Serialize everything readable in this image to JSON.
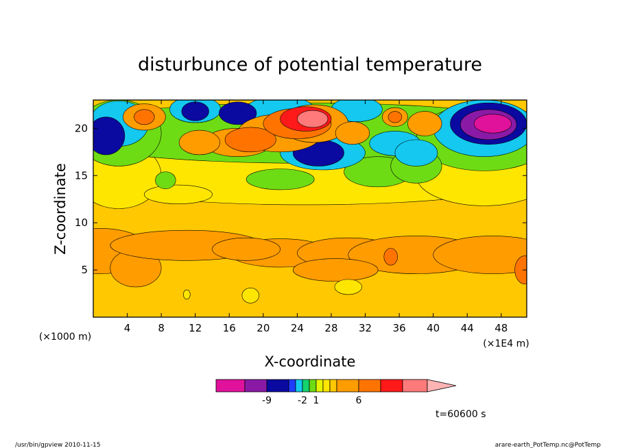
{
  "chart_data": {
    "type": "heatmap",
    "title": "disturbunce of potential temperature",
    "xlabel": "X-coordinate",
    "ylabel": "Z-coordinate",
    "x_unit_left": "(×1000 m)",
    "x_unit_right": "(×1E4 m)",
    "xlim": [
      0,
      51
    ],
    "ylim": [
      0,
      23
    ],
    "x_ticks": [
      {
        "value": 4,
        "label": "4"
      },
      {
        "value": 8,
        "label": "8"
      },
      {
        "value": 12,
        "label": "12"
      },
      {
        "value": 16,
        "label": "16"
      },
      {
        "value": 20,
        "label": "20"
      },
      {
        "value": 24,
        "label": "24"
      },
      {
        "value": 28,
        "label": "28"
      },
      {
        "value": 32,
        "label": "32"
      },
      {
        "value": 36,
        "label": "36"
      },
      {
        "value": 40,
        "label": "40"
      },
      {
        "value": 44,
        "label": "44"
      },
      {
        "value": 48,
        "label": "48"
      }
    ],
    "y_ticks": [
      {
        "value": 5,
        "label": "5"
      },
      {
        "value": 10,
        "label": "10"
      },
      {
        "value": 15,
        "label": "15"
      },
      {
        "value": 20,
        "label": "20"
      }
    ],
    "colorbar": {
      "colors": [
        "#e0129b",
        "#8a1aa6",
        "#0a0aa0",
        "#1e3cff",
        "#14c8f0",
        "#14d46e",
        "#6edc14",
        "#e6f500",
        "#ffe600",
        "#ffc800",
        "#ff9c00",
        "#ff7400",
        "#ff1a1a",
        "#ff7a7a",
        "#ffb4b4"
      ],
      "tick_labels": [
        {
          "after_box": 2,
          "label": "-9"
        },
        {
          "after_box": 5,
          "label": "-2"
        },
        {
          "after_box": 7,
          "label": "1"
        },
        {
          "after_box": 11,
          "label": "6"
        }
      ]
    },
    "fields": [
      {
        "bg": 9
      },
      {
        "level": 10,
        "blobs": [
          [
            0.8,
            7.0,
            6,
            2.4
          ],
          [
            5,
            5.2,
            3,
            2.0
          ],
          [
            11,
            7.6,
            9,
            1.6
          ],
          [
            22,
            6.8,
            6,
            1.5
          ],
          [
            30,
            6.8,
            6,
            1.6
          ],
          [
            38,
            6.6,
            8,
            2.0
          ],
          [
            47,
            6.6,
            7,
            2.0
          ],
          [
            28.5,
            5.0,
            5,
            1.2
          ],
          [
            18,
            7.2,
            4,
            1.2
          ]
        ]
      },
      {
        "level": 11,
        "blobs": [
          [
            35,
            6.4,
            0.8,
            0.9
          ],
          [
            50.8,
            5.0,
            1.2,
            1.5
          ]
        ]
      },
      {
        "level": 8,
        "blobs": [
          [
            25,
            15.5,
            30,
            3.6
          ],
          [
            3,
            15.0,
            5,
            3.5
          ],
          [
            46,
            15.0,
            8,
            3.2
          ],
          [
            10,
            13.0,
            4,
            1.0
          ],
          [
            30,
            3.2,
            1.6,
            0.8
          ],
          [
            18.5,
            2.3,
            1.0,
            0.8
          ],
          [
            11,
            2.4,
            0.4,
            0.5
          ]
        ]
      },
      {
        "level": 6,
        "blobs": [
          [
            25,
            19.5,
            30,
            3.2
          ],
          [
            46,
            19.0,
            8,
            3.5
          ],
          [
            3,
            19.5,
            5,
            3.5
          ],
          [
            8.5,
            14.5,
            1.2,
            0.9
          ],
          [
            22,
            14.6,
            4,
            1.1
          ],
          [
            33.5,
            15.4,
            4,
            1.6
          ],
          [
            38,
            16.0,
            3,
            1.8
          ]
        ]
      },
      {
        "level": 4,
        "blobs": [
          [
            3,
            20.5,
            3.5,
            2.4
          ],
          [
            12,
            22.0,
            3,
            1.4
          ],
          [
            22,
            22.0,
            4,
            1.4
          ],
          [
            31,
            22.0,
            3,
            1.3
          ],
          [
            27,
            17.4,
            5,
            1.8
          ],
          [
            35.5,
            18.4,
            3,
            1.3
          ],
          [
            38,
            17.4,
            2.5,
            1.4
          ],
          [
            46,
            20.0,
            6,
            3.0
          ]
        ]
      },
      {
        "level": 2,
        "blobs": [
          [
            1.5,
            19.2,
            2.2,
            2.0
          ],
          [
            12,
            21.8,
            1.6,
            1.0
          ],
          [
            17,
            21.6,
            2.2,
            1.2
          ],
          [
            26.5,
            17.4,
            3,
            1.4
          ],
          [
            46.5,
            20.5,
            4.5,
            2.2
          ]
        ]
      },
      {
        "level": 1,
        "blobs": [
          [
            46.5,
            20.4,
            3.3,
            1.6
          ]
        ]
      },
      {
        "level": 0,
        "blobs": [
          [
            47,
            20.5,
            2.2,
            1.0
          ]
        ]
      },
      {
        "level": 10,
        "blobs": [
          [
            17,
            18.5,
            4,
            1.5
          ],
          [
            22,
            19.5,
            5,
            2.0
          ],
          [
            26,
            20.5,
            4,
            2.0
          ],
          [
            6,
            21.2,
            2.5,
            1.4
          ],
          [
            35.5,
            21.2,
            1.5,
            1.0
          ],
          [
            39,
            20.5,
            2,
            1.3
          ],
          [
            12.5,
            18.5,
            2.4,
            1.3
          ],
          [
            30.5,
            19.5,
            2,
            1.2
          ]
        ]
      },
      {
        "level": 11,
        "blobs": [
          [
            18.5,
            18.8,
            3,
            1.3
          ],
          [
            24,
            20.5,
            4,
            1.6
          ],
          [
            6,
            21.2,
            1.2,
            0.8
          ],
          [
            35.5,
            21.2,
            0.8,
            0.6
          ]
        ]
      },
      {
        "level": 12,
        "blobs": [
          [
            25,
            21.0,
            3,
            1.3
          ]
        ]
      },
      {
        "level": 13,
        "blobs": [
          [
            25.8,
            21.0,
            1.8,
            0.9
          ]
        ]
      }
    ],
    "timestamp": "t=60600 s"
  },
  "footer": {
    "left": "/usr/bin/gpview   2010-11-15",
    "right": "arare-earth_PotTemp.nc@PotTemp"
  }
}
